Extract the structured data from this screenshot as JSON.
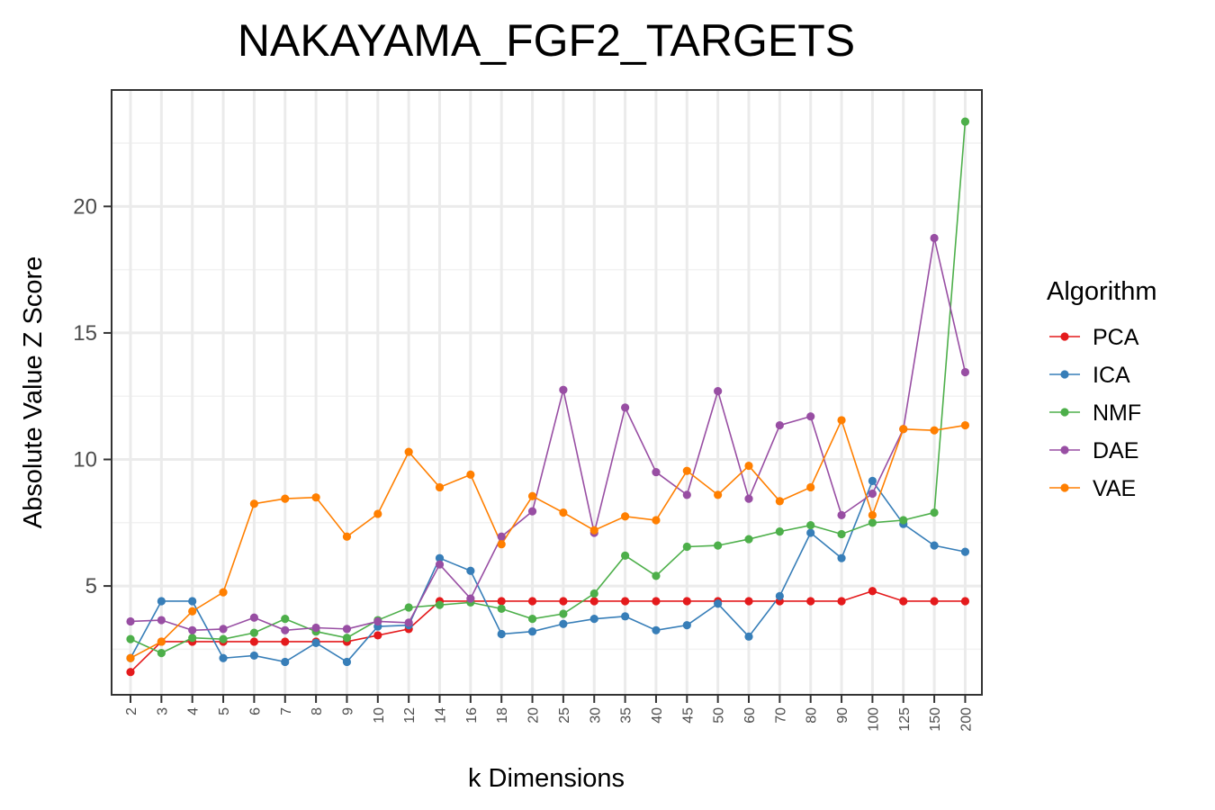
{
  "chart_data": {
    "type": "line",
    "title": "NAKAYAMA_FGF2_TARGETS",
    "xlabel": "k Dimensions",
    "ylabel": "Absolute Value Z Score",
    "categories": [
      "2",
      "3",
      "4",
      "5",
      "6",
      "7",
      "8",
      "9",
      "10",
      "12",
      "14",
      "16",
      "18",
      "20",
      "25",
      "30",
      "35",
      "40",
      "45",
      "50",
      "60",
      "70",
      "80",
      "90",
      "100",
      "125",
      "150",
      "200"
    ],
    "yticks": [
      5,
      10,
      15,
      20
    ],
    "ylim": [
      0.7,
      24.6
    ],
    "grid": true,
    "legend": {
      "title": "Algorithm",
      "position": "right"
    },
    "series": [
      {
        "name": "PCA",
        "color": "#e41a1c",
        "values": [
          1.6,
          2.8,
          2.8,
          2.8,
          2.8,
          2.8,
          2.8,
          2.8,
          3.05,
          3.3,
          4.4,
          4.4,
          4.4,
          4.4,
          4.4,
          4.4,
          4.4,
          4.4,
          4.4,
          4.4,
          4.4,
          4.4,
          4.4,
          4.4,
          4.8,
          4.4,
          4.4,
          4.4
        ]
      },
      {
        "name": "ICA",
        "color": "#377eb8",
        "values": [
          2.15,
          4.4,
          4.4,
          2.15,
          2.25,
          2.0,
          2.75,
          2.0,
          3.4,
          3.45,
          6.1,
          5.6,
          3.1,
          3.2,
          3.5,
          3.7,
          3.8,
          3.25,
          3.45,
          4.3,
          3.0,
          4.6,
          7.1,
          6.1,
          9.15,
          7.45,
          6.6,
          6.35
        ]
      },
      {
        "name": "NMF",
        "color": "#4daf4a",
        "values": [
          2.9,
          2.35,
          2.95,
          2.9,
          3.15,
          3.7,
          3.2,
          2.95,
          3.65,
          4.15,
          4.25,
          4.35,
          4.1,
          3.7,
          3.9,
          4.7,
          6.2,
          5.4,
          6.55,
          6.6,
          6.85,
          7.15,
          7.4,
          7.05,
          7.5,
          7.6,
          7.9,
          23.35
        ]
      },
      {
        "name": "DAE",
        "color": "#984ea3",
        "values": [
          3.6,
          3.65,
          3.25,
          3.3,
          3.75,
          3.25,
          3.35,
          3.3,
          3.6,
          3.55,
          5.85,
          4.5,
          6.95,
          7.95,
          12.75,
          7.1,
          12.05,
          9.5,
          8.6,
          12.7,
          8.45,
          11.35,
          11.7,
          7.8,
          8.65,
          11.2,
          18.75,
          13.45
        ]
      },
      {
        "name": "VAE",
        "color": "#ff7f00",
        "values": [
          2.15,
          2.8,
          4.0,
          4.75,
          8.25,
          8.45,
          8.5,
          6.95,
          7.85,
          10.3,
          8.9,
          9.4,
          6.65,
          8.55,
          7.9,
          7.2,
          7.75,
          7.6,
          9.55,
          8.6,
          9.75,
          8.35,
          8.9,
          11.55,
          7.8,
          11.2,
          11.15,
          11.35
        ]
      }
    ]
  }
}
